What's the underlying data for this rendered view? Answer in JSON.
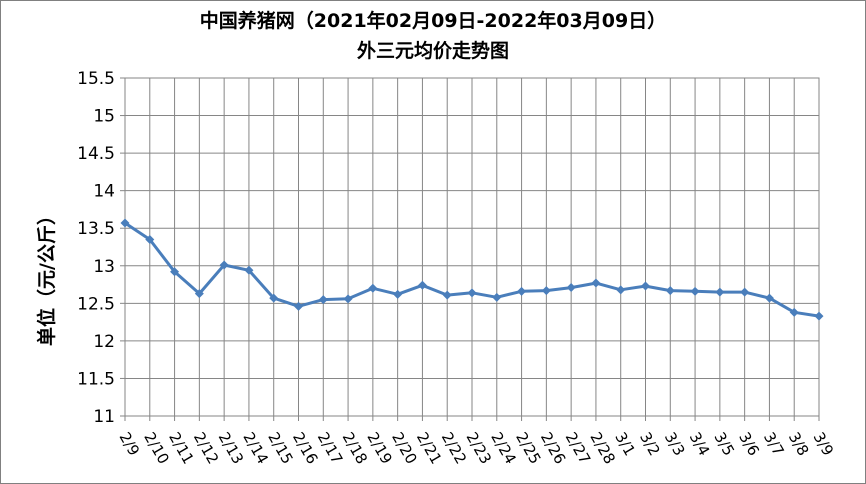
{
  "chart_data": {
    "type": "line",
    "title": "中国养猪网（2021年02月09日-2022年03月09日）",
    "subtitle": "外三元均价走势图",
    "xlabel": "",
    "ylabel": "单位（元/公斤）",
    "ylim": [
      11,
      15.5
    ],
    "y_ticks": [
      "11",
      "11.5",
      "12",
      "12.5",
      "13",
      "13.5",
      "14",
      "14.5",
      "15",
      "15.5"
    ],
    "grid": true,
    "legend": "none",
    "categories": [
      "2/9",
      "2/10",
      "2/11",
      "2/12",
      "2/13",
      "2/14",
      "2/15",
      "2/16",
      "2/17",
      "2/18",
      "2/19",
      "2/20",
      "2/21",
      "2/22",
      "2/23",
      "2/24",
      "2/25",
      "2/26",
      "2/27",
      "2/28",
      "3/1",
      "3/2",
      "3/3",
      "3/4",
      "3/5",
      "3/6",
      "3/7",
      "3/8",
      "3/9"
    ],
    "series": [
      {
        "color": "#4a7ebb",
        "values": [
          13.57,
          13.35,
          12.92,
          12.63,
          13.01,
          12.94,
          12.57,
          12.46,
          12.55,
          12.56,
          12.7,
          12.62,
          12.74,
          12.61,
          12.64,
          12.58,
          12.66,
          12.67,
          12.71,
          12.77,
          12.68,
          12.73,
          12.67,
          12.66,
          12.65,
          12.65,
          12.57,
          12.38,
          12.33
        ]
      }
    ]
  }
}
